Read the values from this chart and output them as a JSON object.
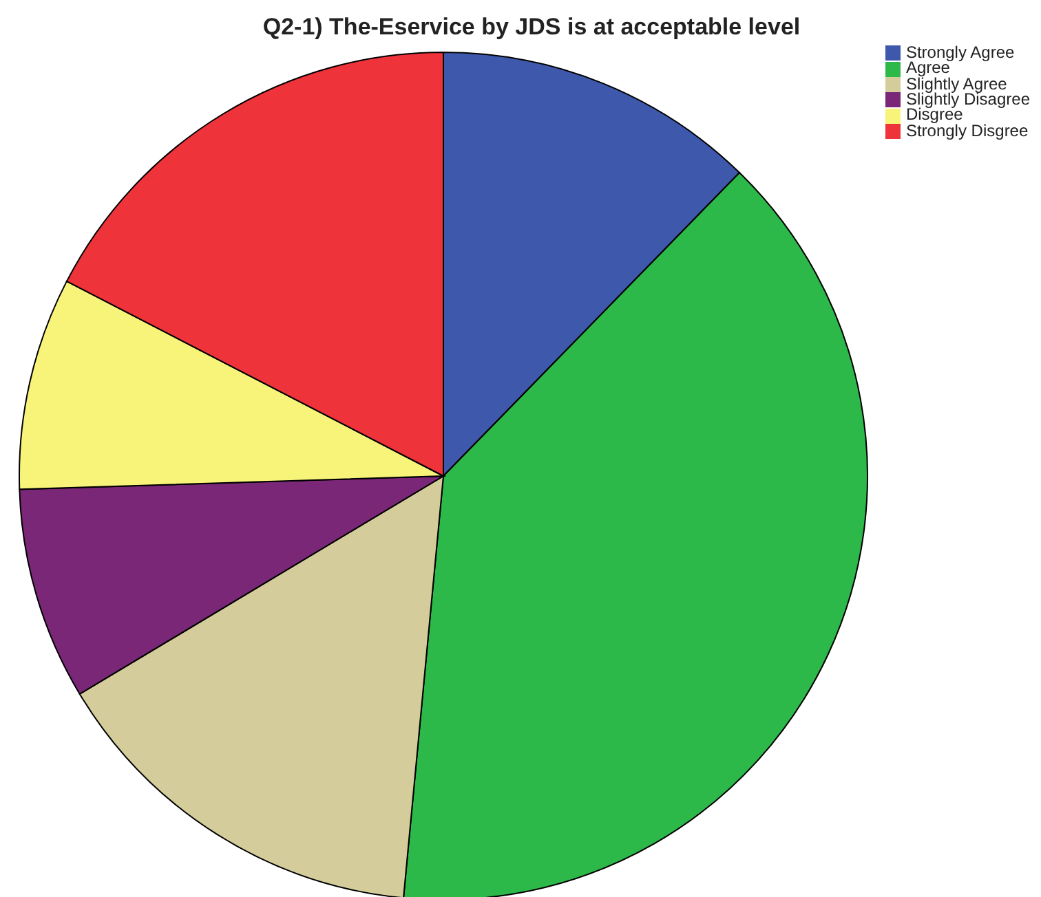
{
  "chart_data": {
    "type": "pie",
    "title": "Q2-1) The-Eservice by JDS is at acceptable level",
    "categories": [
      "Strongly Agree",
      "Agree",
      "Slightly Agree",
      "Slightly Disagree",
      "Disgree",
      "Strongly Disgree"
    ],
    "values": [
      12.3,
      39.2,
      14.9,
      8.1,
      8.1,
      17.4
    ],
    "colors": [
      "#3e58ac",
      "#2db84a",
      "#d4cd9b",
      "#7a2778",
      "#f8f47a",
      "#ee333b"
    ],
    "legend": "top right"
  }
}
